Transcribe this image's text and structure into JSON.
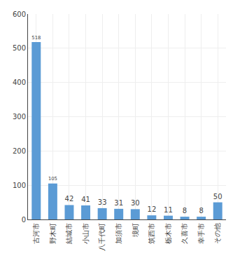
{
  "chart_data": {
    "type": "bar",
    "categories": [
      "古河市",
      "野木町",
      "結城市",
      "小山市",
      "八千代町",
      "加須市",
      "境町",
      "筑西市",
      "栃木市",
      "久喜市",
      "幸手市",
      "その他"
    ],
    "values": [
      518,
      105,
      42,
      41,
      33,
      31,
      30,
      12,
      11,
      8,
      8,
      50
    ],
    "color": "#5B9BD5",
    "ylim": [
      0,
      600
    ],
    "yticks": [
      0,
      100,
      200,
      300,
      400,
      500,
      600
    ],
    "grid": true,
    "data_labels": true
  }
}
